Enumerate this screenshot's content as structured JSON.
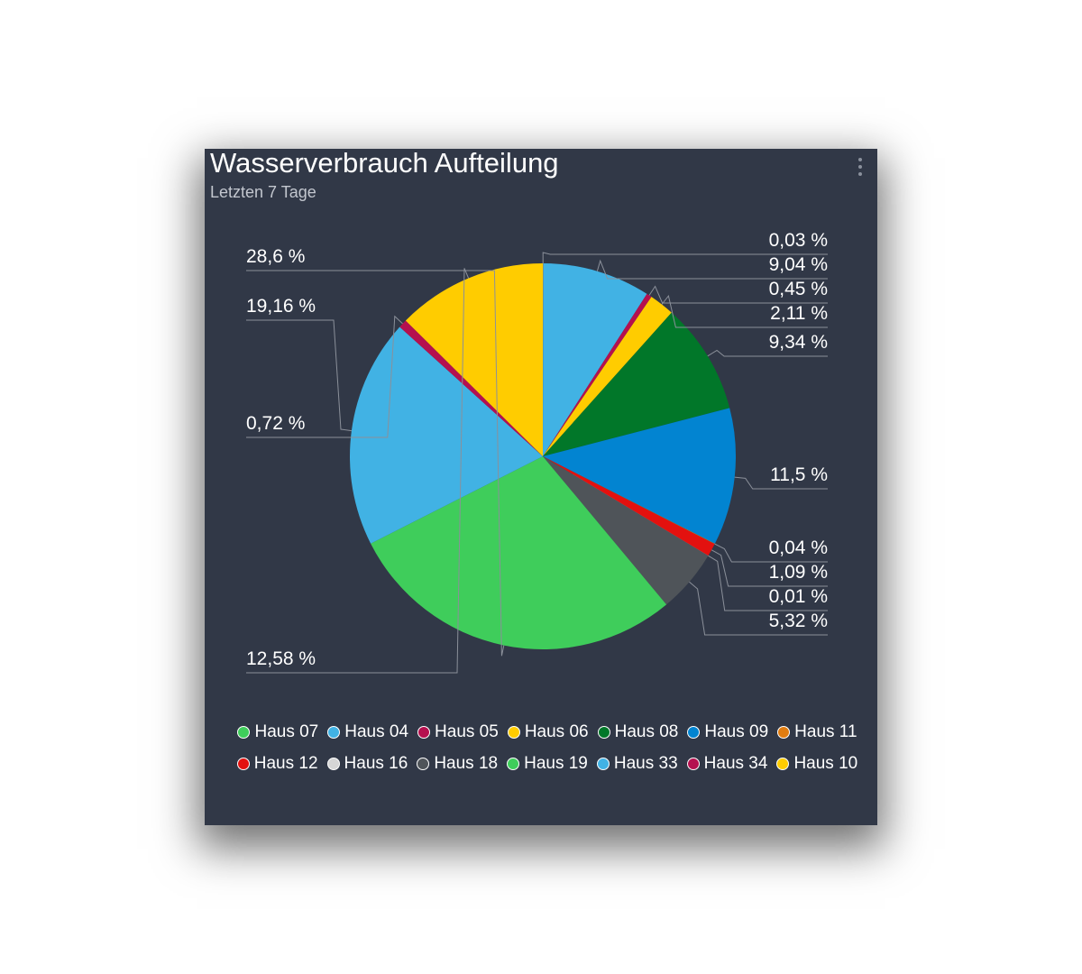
{
  "card": {
    "title": "Wasserverbrauch Aufteilung",
    "subtitle": "Letzten 7 Tage",
    "menu_icon": "more-vertical-icon"
  },
  "chart_data": {
    "type": "pie",
    "title": "Wasserverbrauch Aufteilung",
    "subtitle": "Letzten 7 Tage",
    "legend_position": "bottom",
    "slices": [
      {
        "label": "0,03 %",
        "value": 0.03,
        "color": "#e07c10"
      },
      {
        "label": "9,04 %",
        "value": 9.04,
        "color": "#41b2e4"
      },
      {
        "label": "0,45 %",
        "value": 0.45,
        "color": "#b5104f"
      },
      {
        "label": "2,11 %",
        "value": 2.11,
        "color": "#ffcc00"
      },
      {
        "label": "9,34 %",
        "value": 9.34,
        "color": "#017729"
      },
      {
        "label": "11,5 %",
        "value": 11.5,
        "color": "#0284d1"
      },
      {
        "label": "0,04 %",
        "value": 0.04,
        "color": "#e07c10"
      },
      {
        "label": "1,09 %",
        "value": 1.09,
        "color": "#e3110f"
      },
      {
        "label": "0,01 %",
        "value": 0.01,
        "color": "#d6d6d6"
      },
      {
        "label": "5,32 %",
        "value": 5.32,
        "color": "#4f5459"
      },
      {
        "label": "28,6 %",
        "value": 28.6,
        "color": "#3fcd5b"
      },
      {
        "label": "19,16 %",
        "value": 19.16,
        "color": "#41b2e4"
      },
      {
        "label": "0,72 %",
        "value": 0.72,
        "color": "#b5104f"
      },
      {
        "label": "12,58 %",
        "value": 12.58,
        "color": "#ffcc00"
      }
    ],
    "legend": [
      {
        "label": "Haus 07",
        "color": "#3fcd5b"
      },
      {
        "label": "Haus 04",
        "color": "#41b2e4"
      },
      {
        "label": "Haus 05",
        "color": "#b5104f"
      },
      {
        "label": "Haus 06",
        "color": "#ffcc00"
      },
      {
        "label": "Haus 08",
        "color": "#017729"
      },
      {
        "label": "Haus 09",
        "color": "#0284d1"
      },
      {
        "label": "Haus 11",
        "color": "#e07c10"
      },
      {
        "label": "Haus 12",
        "color": "#e3110f"
      },
      {
        "label": "Haus 16",
        "color": "#d6d6d6"
      },
      {
        "label": "Haus 18",
        "color": "#4f5459"
      },
      {
        "label": "Haus 19",
        "color": "#3fcd5b"
      },
      {
        "label": "Haus 33",
        "color": "#41b2e4"
      },
      {
        "label": "Haus 34",
        "color": "#b5104f"
      },
      {
        "label": "Haus 10",
        "color": "#ffcc00"
      }
    ]
  }
}
